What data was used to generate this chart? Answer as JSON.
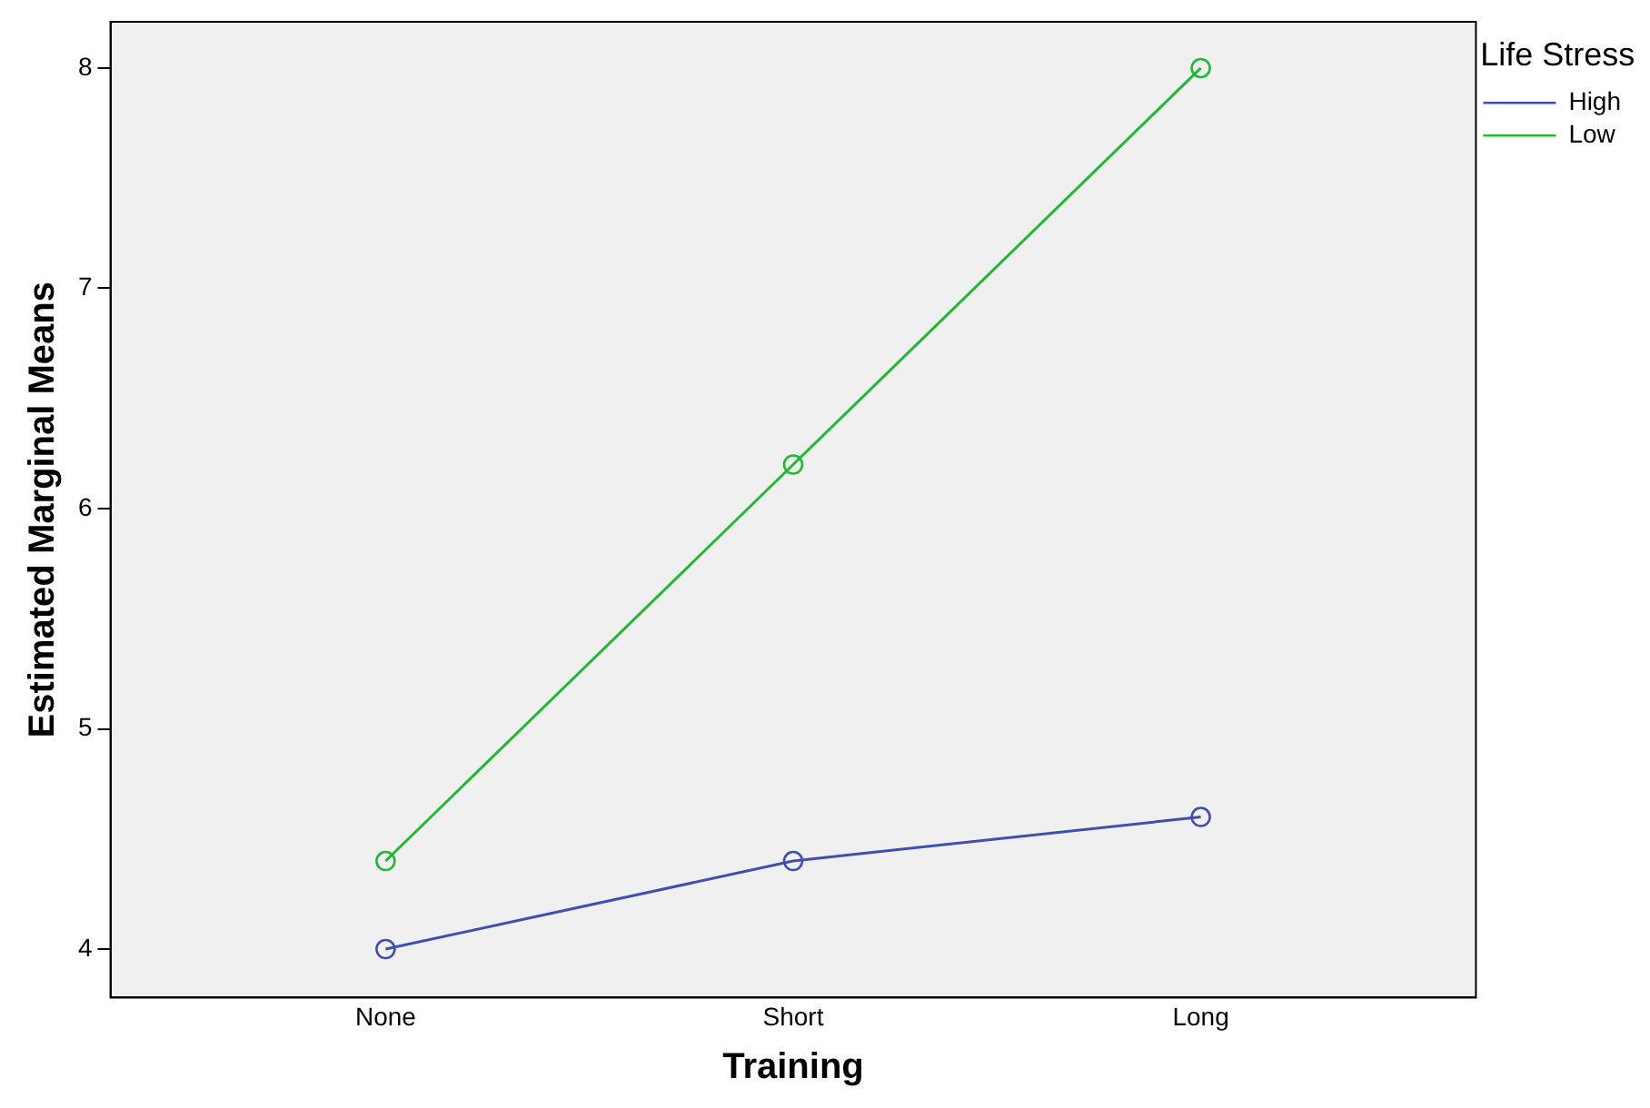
{
  "chart_data": {
    "type": "line",
    "xlabel": "Training",
    "ylabel": "Estimated Marginal Means",
    "legend_title": "Life Stress",
    "legend": "top right",
    "marker": "circle",
    "line_style": "solid",
    "grid": false,
    "categories": [
      "None",
      "Short",
      "Long"
    ],
    "ylim": [
      3.78,
      8.21
    ],
    "yticks": [
      4,
      5,
      6,
      7,
      8
    ],
    "series": [
      {
        "name": "High",
        "color": "#3f4fb0",
        "values": [
          4.0,
          4.4,
          4.6
        ]
      },
      {
        "name": "Low",
        "color": "#21b833",
        "values": [
          4.4,
          6.2,
          8.0
        ]
      }
    ]
  }
}
